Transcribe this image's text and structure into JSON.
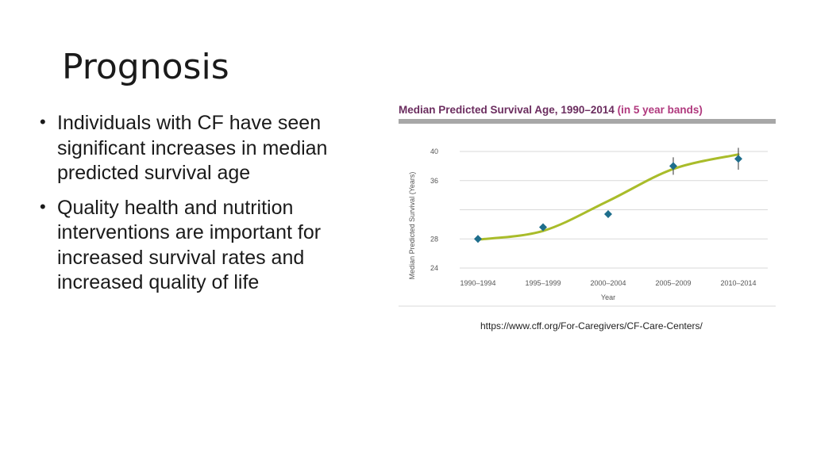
{
  "slide": {
    "title": "Prognosis",
    "bullets": [
      {
        "text": "Individuals with CF have seen significant increases in median predicted survival age"
      },
      {
        "text": "Quality health and nutrition interventions are important for increased survival rates and increased quality of life"
      }
    ],
    "source": "https://www.cff.org/For-Caregivers/CF-Care-Centers/"
  },
  "chart_data": {
    "type": "scatter",
    "title": "Median Predicted Survival Age, 1990–2014",
    "subtitle": "(in 5 year bands)",
    "xlabel": "Year",
    "ylabel": "Median Predicted Survival (Years)",
    "categories": [
      "1990–1994",
      "1995–1999",
      "2000–2004",
      "2005–2009",
      "2010–2014"
    ],
    "values": [
      28.0,
      29.6,
      31.4,
      38.0,
      39.0
    ],
    "error_bars": [
      0.5,
      0.5,
      0.5,
      1.2,
      1.5
    ],
    "trend": [
      27.9,
      29.1,
      33.2,
      37.6,
      39.6
    ],
    "yticks": [
      24,
      28,
      36,
      40
    ],
    "ylim": [
      24,
      40
    ],
    "grid": true,
    "colors": {
      "title": "#6b2d5f",
      "subtitle": "#b0397e",
      "bar": "#a7a7a7",
      "trend": "#a9bc2a",
      "marker": "#1e6e8c",
      "grid": "#d9d9d9",
      "axis": "#555555"
    }
  }
}
